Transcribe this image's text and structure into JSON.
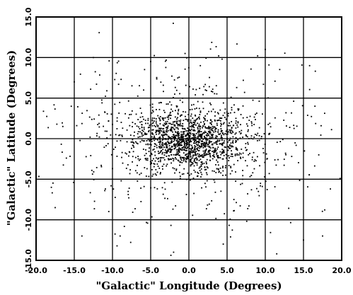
{
  "chart_data": {
    "type": "scatter",
    "title": "",
    "xlabel": "\"Galactic\" Longitude (Degrees)",
    "ylabel": "\"Galactic\" Latitude (Degrees)",
    "xlim": [
      -20.0,
      20.0
    ],
    "ylim": [
      -15.0,
      15.0
    ],
    "grid": true,
    "xticks": [
      "-20.0",
      "-15.0",
      "-10.0",
      "-5.0",
      "0.0",
      "5.0",
      "10.0",
      "15.0",
      "20.0"
    ],
    "yticks": [
      "15.0",
      "10.0",
      "5.0",
      "0.0",
      "-5.0",
      "-10.0",
      "-15.0"
    ],
    "xtick_values": [
      -20,
      -15,
      -10,
      -5,
      0,
      5,
      10,
      15,
      20
    ],
    "ytick_values": [
      15,
      10,
      5,
      0,
      -5,
      -10,
      -15
    ],
    "point_color": "#000000",
    "series": [
      {
        "components": [
          {
            "n": 1100,
            "cx": 0.0,
            "cy": -0.3,
            "sx": 3.6,
            "sy": 1.7
          },
          {
            "n": 450,
            "cx": 0.0,
            "cy": 0.0,
            "sx": 7.5,
            "sy": 4.0
          },
          {
            "n": 260,
            "cx": 0.0,
            "cy": -1.0,
            "sx": 9.5,
            "sy": 5.5
          }
        ],
        "outliers": [
          [
            -0.5,
            10.5
          ],
          [
            10.0,
            11.0
          ],
          [
            15.8,
            9.0
          ],
          [
            -12.5,
            10.0
          ],
          [
            -15.0,
            7.0
          ],
          [
            -18.0,
            -6.0
          ],
          [
            -17.5,
            -8.5
          ],
          [
            15.0,
            -12.5
          ],
          [
            17.5,
            -12.0
          ],
          [
            17.0,
            -2.0
          ],
          [
            -2.0,
            -14.0
          ],
          [
            4.5,
            -13.0
          ],
          [
            9.0,
            10.2
          ],
          [
            -9.0,
            -12.0
          ],
          [
            11.5,
            -14.2
          ],
          [
            -16.5,
            1.5
          ],
          [
            16.5,
            4.0
          ],
          [
            -14.0,
            -12.0
          ],
          [
            1.5,
            9.0
          ],
          [
            -5.0,
            9.5
          ]
        ]
      }
    ]
  }
}
